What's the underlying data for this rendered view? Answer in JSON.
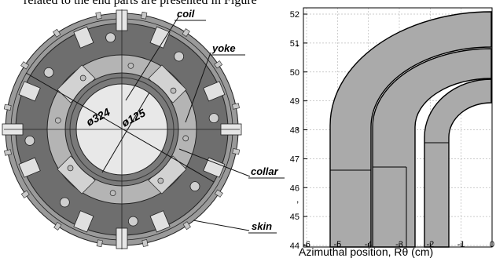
{
  "top_text": "related to the end parts are presented in Figure",
  "cross_section": {
    "labels": {
      "coil": "coil",
      "yoke": "yoke",
      "collar": "collar",
      "skin": "skin",
      "outer_diameter": "ø324",
      "inner_diameter": "ø125"
    },
    "colors": {
      "yoke": "#6e6e6e",
      "skin": "#9a9a9a",
      "collar": "#b4b4b4",
      "coil": "#7a7a7a",
      "bore": "#e8e8e8"
    }
  },
  "end_plot": {
    "y_ticks": [
      "52",
      "51",
      "50",
      "49",
      "48",
      "47",
      "46",
      "45",
      "44"
    ],
    "x_ticks": [
      "-6",
      "-5",
      "-4",
      "-3",
      "-2",
      "-1",
      "0"
    ],
    "x_label": "Azimuthal position, Rθ (cm)",
    "stray_marks": [
      ",",
      ",",
      ","
    ],
    "colors": {
      "fill": "#aaaaaa",
      "stroke": "#000000",
      "grid": "#bbbbbb"
    }
  }
}
